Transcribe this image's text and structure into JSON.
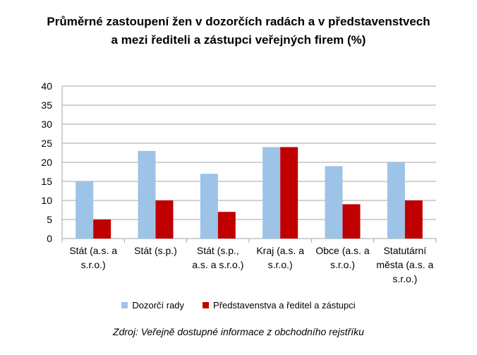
{
  "chart_data": {
    "type": "bar",
    "title_lines": [
      "Průměrné zastoupení žen v dozorčích radách a v představenstvech",
      "a mezi řediteli a zástupci veřejných firem (%)"
    ],
    "categories": [
      [
        "Stát (a.s. a",
        "s.r.o.)"
      ],
      [
        "Stát (s.p.)"
      ],
      [
        "Stát (s.p.,",
        "a.s. a s.r.o.)"
      ],
      [
        "Kraj (a.s. a",
        "s.r.o.)"
      ],
      [
        "Obce (a.s. a",
        "s.r.o.)"
      ],
      [
        "Statutární",
        "města (a.s. a",
        "s.r.o.)"
      ]
    ],
    "series": [
      {
        "name": "Dozorčí rady",
        "color": "#9DC3E6",
        "values": [
          15,
          23,
          17,
          24,
          19,
          20
        ]
      },
      {
        "name": "Představenstva a ředitel a zástupci",
        "color": "#C00000",
        "values": [
          5,
          10,
          7,
          24,
          9,
          10
        ]
      }
    ],
    "y_ticks": [
      0,
      5,
      10,
      15,
      20,
      25,
      30,
      35,
      40
    ],
    "ylim": [
      0,
      40
    ],
    "grid": true,
    "legend_position": "bottom"
  },
  "source": "Zdroj: Veřejně dostupné informace z obchodního rejstříku"
}
